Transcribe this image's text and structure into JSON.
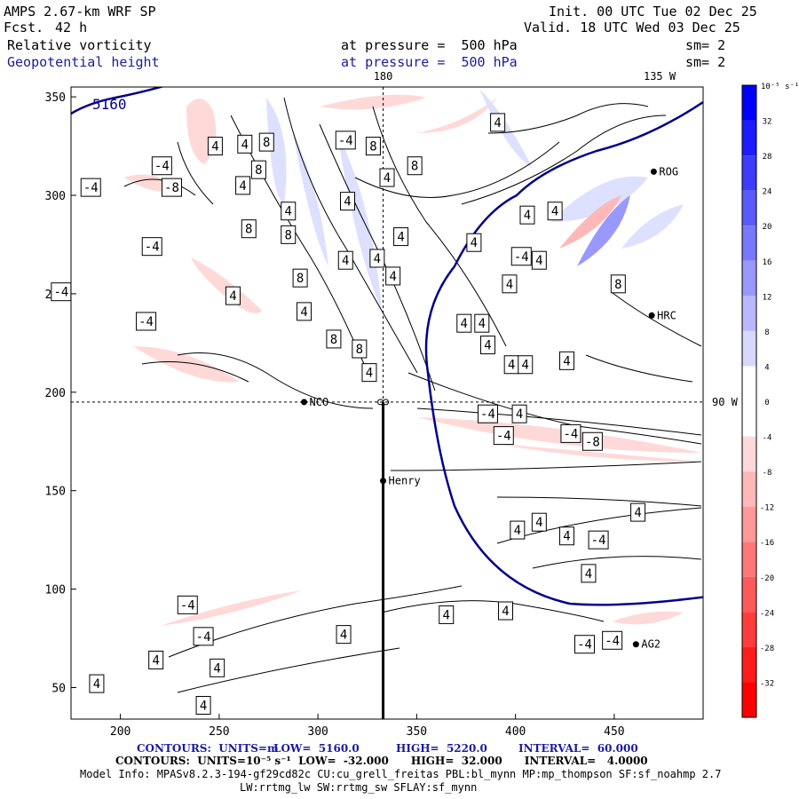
{
  "header": {
    "model": "AMPS 2.67-km WRF SP",
    "fcst_label": "Fcst.",
    "fcst_value": "42 h",
    "init": "Init. 00 UTC Tue 02 Dec 25",
    "valid": "Valid. 18 UTC Wed 03 Dec 25",
    "field1_name": "Relative vorticity",
    "field1_level": "at pressure =  500 hPa",
    "field1_sm": "sm= 2",
    "field2_name": "Geopotential height",
    "field2_level": "at pressure =  500 hPa",
    "field2_sm": "sm= 2"
  },
  "colors": {
    "blue_text": "#1a1aa0",
    "height_contour": "#00008b",
    "positive_max": "#0000ff",
    "negative_max": "#ff0000"
  },
  "chart_data": {
    "type": "contour",
    "xlim": [
      175,
      495
    ],
    "ylim": [
      34,
      355
    ],
    "xticks": [
      200,
      250,
      300,
      350,
      400,
      450
    ],
    "yticks": [
      50,
      100,
      150,
      200,
      250,
      300,
      350
    ],
    "meridian_labels": [
      {
        "text": "180",
        "x": 333
      },
      {
        "text": "135 W",
        "x": 473
      },
      {
        "text": "90 W",
        "y": 195
      }
    ],
    "height_contour_label": "5160",
    "stations": [
      {
        "name": "NCO",
        "x": 293,
        "y": 195
      },
      {
        "name": "Henry",
        "x": 333,
        "y": 155
      },
      {
        "name": "HRC",
        "x": 469,
        "y": 239
      },
      {
        "name": "ROG",
        "x": 470,
        "y": 312
      },
      {
        "name": "AG2",
        "x": 461,
        "y": 72
      }
    ],
    "contour_labels": [
      {
        "v": "-4",
        "x": 221,
        "y": 315
      },
      {
        "v": "-8",
        "x": 226,
        "y": 304
      },
      {
        "v": "-4",
        "x": 185,
        "y": 304
      },
      {
        "v": "-4",
        "x": 216,
        "y": 274
      },
      {
        "v": "-4",
        "x": 170,
        "y": 251
      },
      {
        "v": "-4",
        "x": 213,
        "y": 236
      },
      {
        "v": "4",
        "x": 248,
        "y": 325
      },
      {
        "v": "4",
        "x": 263,
        "y": 326
      },
      {
        "v": "8",
        "x": 274,
        "y": 327
      },
      {
        "v": "8",
        "x": 270,
        "y": 313
      },
      {
        "v": "4",
        "x": 262,
        "y": 305
      },
      {
        "v": "8",
        "x": 265,
        "y": 283
      },
      {
        "v": "4",
        "x": 257,
        "y": 249
      },
      {
        "v": "8",
        "x": 285,
        "y": 280
      },
      {
        "v": "4",
        "x": 285,
        "y": 292
      },
      {
        "v": "8",
        "x": 291,
        "y": 258
      },
      {
        "v": "4",
        "x": 293,
        "y": 241
      },
      {
        "v": "4",
        "x": 314,
        "y": 267
      },
      {
        "v": "8",
        "x": 308,
        "y": 227
      },
      {
        "v": "8",
        "x": 321,
        "y": 222
      },
      {
        "v": "4",
        "x": 326,
        "y": 210
      },
      {
        "v": "-4",
        "x": 314,
        "y": 328
      },
      {
        "v": "8",
        "x": 328,
        "y": 325
      },
      {
        "v": "4",
        "x": 335,
        "y": 309
      },
      {
        "v": "4",
        "x": 315,
        "y": 297
      },
      {
        "v": "8",
        "x": 349,
        "y": 315
      },
      {
        "v": "4",
        "x": 342,
        "y": 279
      },
      {
        "v": "4",
        "x": 330,
        "y": 268
      },
      {
        "v": "4",
        "x": 338,
        "y": 259
      },
      {
        "v": "4",
        "x": 374,
        "y": 235
      },
      {
        "v": "4",
        "x": 383,
        "y": 235
      },
      {
        "v": "4",
        "x": 386,
        "y": 224
      },
      {
        "v": "4",
        "x": 398,
        "y": 214
      },
      {
        "v": "4",
        "x": 405,
        "y": 214
      },
      {
        "v": "4",
        "x": 426,
        "y": 216
      },
      {
        "v": "4",
        "x": 391,
        "y": 337
      },
      {
        "v": "-4",
        "x": 386,
        "y": 189
      },
      {
        "v": "4",
        "x": 402,
        "y": 189
      },
      {
        "v": "-4",
        "x": 394,
        "y": 178
      },
      {
        "v": "-4",
        "x": 428,
        "y": 179
      },
      {
        "v": "-8",
        "x": 439,
        "y": 175
      },
      {
        "v": "4",
        "x": 462,
        "y": 139
      },
      {
        "v": "4",
        "x": 401,
        "y": 130
      },
      {
        "v": "4",
        "x": 412,
        "y": 134
      },
      {
        "v": "4",
        "x": 426,
        "y": 127
      },
      {
        "v": "-4",
        "x": 442,
        "y": 125
      },
      {
        "v": "4",
        "x": 437,
        "y": 108
      },
      {
        "v": "4",
        "x": 313,
        "y": 77
      },
      {
        "v": "4",
        "x": 365,
        "y": 87
      },
      {
        "v": "4",
        "x": 395,
        "y": 89
      },
      {
        "v": "-4",
        "x": 234,
        "y": 92
      },
      {
        "v": "-4",
        "x": 242,
        "y": 76
      },
      {
        "v": "4",
        "x": 218,
        "y": 64
      },
      {
        "v": "4",
        "x": 249,
        "y": 60
      },
      {
        "v": "4",
        "x": 188,
        "y": 52
      },
      {
        "v": "4",
        "x": 242,
        "y": 41
      },
      {
        "v": "-4",
        "x": 435,
        "y": 72
      },
      {
        "v": "-4",
        "x": 449,
        "y": 74
      },
      {
        "v": "8",
        "x": 452,
        "y": 255
      },
      {
        "v": "4",
        "x": 397,
        "y": 255
      },
      {
        "v": "4",
        "x": 412,
        "y": 267
      },
      {
        "v": "4",
        "x": 406,
        "y": 290
      },
      {
        "v": "4",
        "x": 420,
        "y": 292
      },
      {
        "v": "-4",
        "x": 403,
        "y": 269
      },
      {
        "v": "4",
        "x": 379,
        "y": 276
      }
    ],
    "colorbar": {
      "unit": "10⁻⁵ s⁻¹",
      "ticks": [
        32,
        28,
        24,
        20,
        16,
        12,
        8,
        4,
        0,
        -4,
        -8,
        -12,
        -16,
        -20,
        -24,
        -28,
        -32
      ],
      "colors": [
        "#0000ff",
        "#1c1cff",
        "#3c3cff",
        "#5a5aff",
        "#7878ff",
        "#9898ff",
        "#b8b8ff",
        "#d8d8ff",
        "#ffffff",
        "#ffffff",
        "#ffd8d8",
        "#ffb8b8",
        "#ff9898",
        "#ff7878",
        "#ff5a5a",
        "#ff3c3c",
        "#ff1c1c",
        "#ff0000"
      ]
    }
  },
  "footer": {
    "line1_a": "CONTOURS:  UNITS=m",
    "line1_b": "LOW=  5160.0",
    "line1_c": "HIGH=  5220.0",
    "line1_d": "INTERVAL=  60.000",
    "line2": "CONTOURS:  UNITS=10⁻⁵ s⁻¹  LOW=  -32.000      HIGH=  32.000      INTERVAL=   4.0000",
    "line3": "Model Info: MPASv8.2.3-194-gf29cd82c CU:cu_grell_freitas PBL:bl_mynn MP:mp_thompson SF:sf_noahmp 2.7",
    "line4": "LW:rrtmg_lw SW:rrtmg_sw SFLAY:sf_mynn"
  }
}
